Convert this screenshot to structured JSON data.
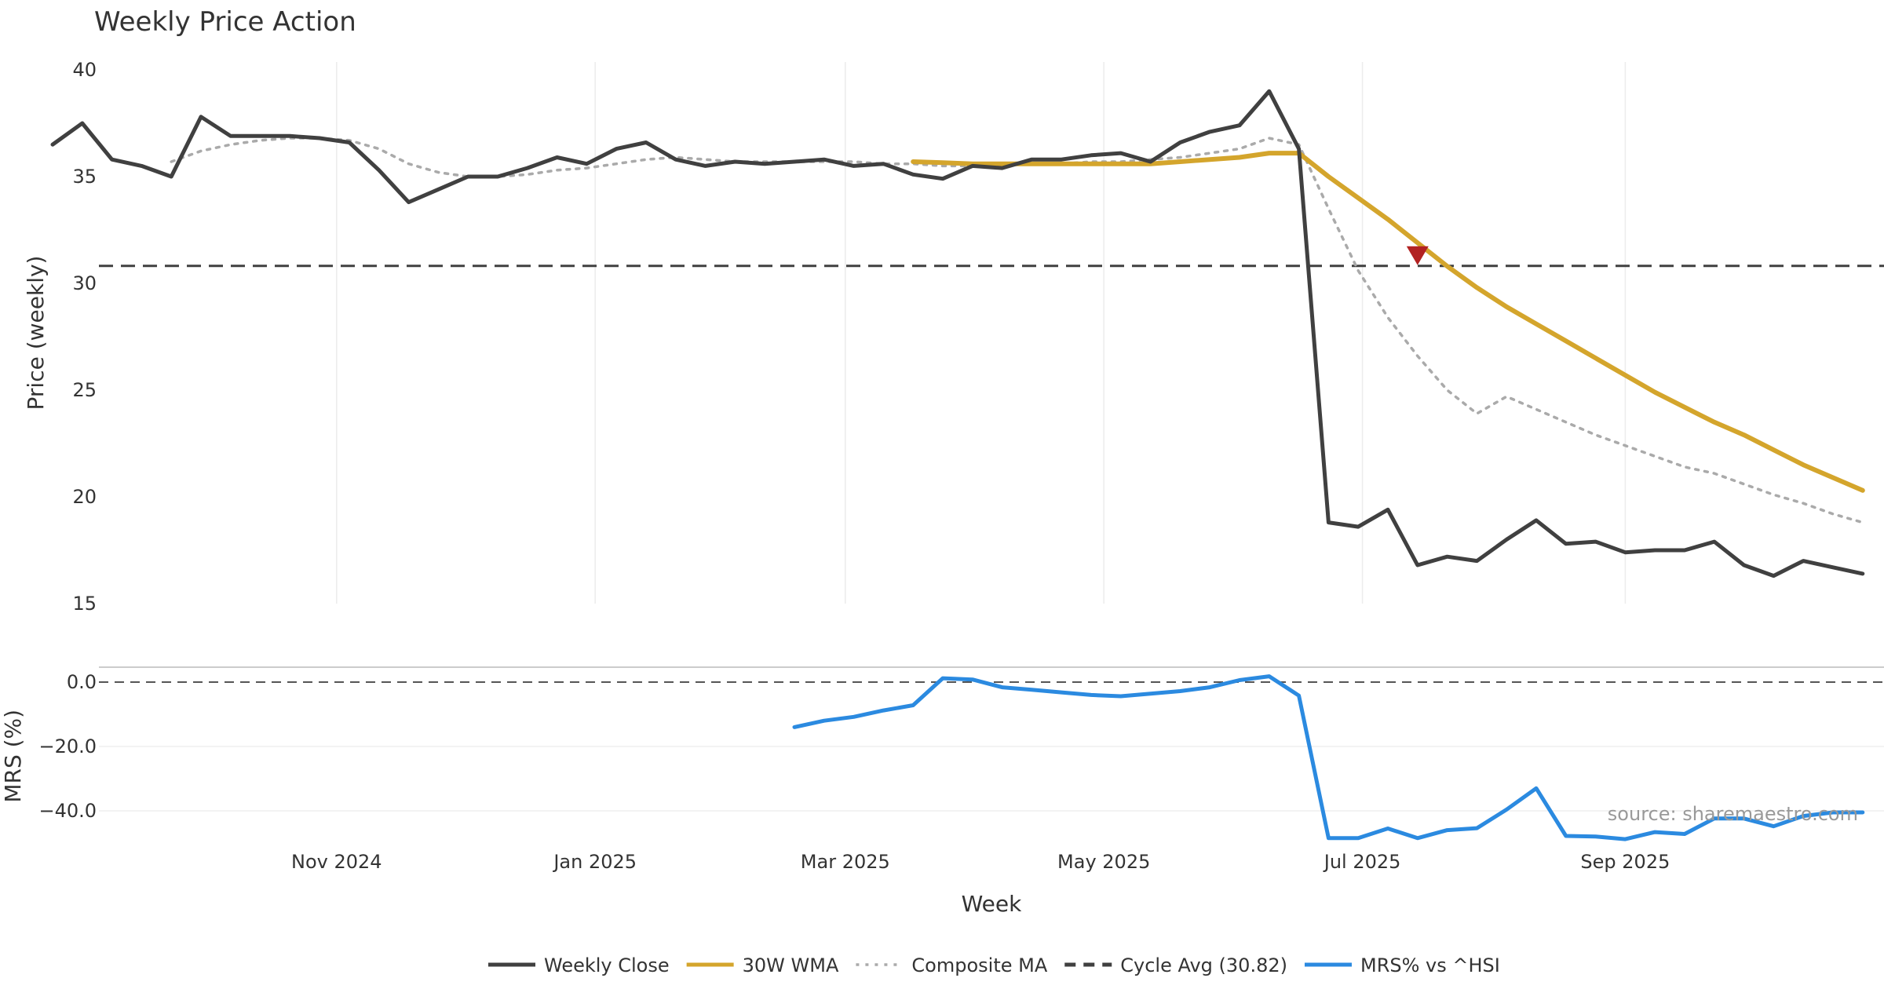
{
  "chart_data": {
    "type": "line",
    "title": "Weekly Price Action",
    "xlabel": "Week",
    "source": "source: sharemaestro.com",
    "x_ticks": [
      "Nov 2024",
      "Jan 2025",
      "Mar 2025",
      "May 2025",
      "Jul 2025",
      "Sep 2025"
    ],
    "weeks": [
      "2024-08-26",
      "2024-09-02",
      "2024-09-09",
      "2024-09-16",
      "2024-09-23",
      "2024-09-30",
      "2024-10-07",
      "2024-10-14",
      "2024-10-21",
      "2024-10-28",
      "2024-11-04",
      "2024-11-11",
      "2024-11-18",
      "2024-11-25",
      "2024-12-02",
      "2024-12-09",
      "2024-12-16",
      "2024-12-23",
      "2024-12-30",
      "2025-01-06",
      "2025-01-13",
      "2025-01-20",
      "2025-01-27",
      "2025-02-03",
      "2025-02-10",
      "2025-02-17",
      "2025-02-24",
      "2025-03-03",
      "2025-03-10",
      "2025-03-17",
      "2025-03-24",
      "2025-03-31",
      "2025-04-07",
      "2025-04-14",
      "2025-04-21",
      "2025-04-28",
      "2025-05-05",
      "2025-05-12",
      "2025-05-19",
      "2025-05-26",
      "2025-06-02",
      "2025-06-09",
      "2025-06-16",
      "2025-06-23",
      "2025-06-30",
      "2025-07-07",
      "2025-07-14",
      "2025-07-21",
      "2025-07-28",
      "2025-08-04",
      "2025-08-11",
      "2025-08-18",
      "2025-08-25",
      "2025-09-01",
      "2025-09-08",
      "2025-09-15",
      "2025-09-22",
      "2025-09-29",
      "2025-10-06",
      "2025-10-13",
      "2025-10-20",
      "2025-10-27"
    ],
    "price_panel": {
      "ylabel": "Price (weekly)",
      "ylim": [
        15,
        40
      ],
      "yticks": [
        "15",
        "20",
        "25",
        "30",
        "35",
        "40"
      ],
      "series": [
        {
          "name": "Weekly Close",
          "color": "#404040",
          "style": "solid",
          "values": [
            36.5,
            37.5,
            35.8,
            35.5,
            35.0,
            37.8,
            36.9,
            36.9,
            36.9,
            36.8,
            36.6,
            35.3,
            33.8,
            34.4,
            35.0,
            35.0,
            35.4,
            35.9,
            35.6,
            36.3,
            36.6,
            35.8,
            35.5,
            35.7,
            35.6,
            35.7,
            35.8,
            35.5,
            35.6,
            35.1,
            34.9,
            35.5,
            35.4,
            35.8,
            35.8,
            36.0,
            36.1,
            35.7,
            36.6,
            37.1,
            37.4,
            39.0,
            36.3,
            18.8,
            18.6,
            19.4,
            16.8,
            17.2,
            17.0,
            18.0,
            18.9,
            17.8,
            17.9,
            17.4,
            17.5,
            17.5,
            17.9,
            16.8,
            16.3,
            17.0,
            16.7,
            16.4
          ]
        },
        {
          "name": "30W WMA",
          "color": "#d4a52c",
          "style": "solid",
          "values": [
            null,
            null,
            null,
            null,
            null,
            null,
            null,
            null,
            null,
            null,
            null,
            null,
            null,
            null,
            null,
            null,
            null,
            null,
            null,
            null,
            null,
            null,
            null,
            null,
            null,
            null,
            null,
            null,
            null,
            35.7,
            35.65,
            35.6,
            35.6,
            35.6,
            35.6,
            35.6,
            35.6,
            35.6,
            35.7,
            35.8,
            35.9,
            36.1,
            36.1,
            35.0,
            34.0,
            33.0,
            31.9,
            30.8,
            29.8,
            28.9,
            28.1,
            27.3,
            26.5,
            25.7,
            24.9,
            24.2,
            23.5,
            22.9,
            22.2,
            21.5,
            20.9,
            20.3
          ]
        },
        {
          "name": "Composite MA",
          "color": "#aaaaaa",
          "style": "dotted",
          "values": [
            null,
            null,
            null,
            null,
            35.7,
            36.2,
            36.5,
            36.7,
            36.8,
            36.8,
            36.7,
            36.3,
            35.6,
            35.2,
            35.0,
            35.0,
            35.1,
            35.3,
            35.4,
            35.6,
            35.8,
            35.9,
            35.8,
            35.7,
            35.7,
            35.7,
            35.7,
            35.7,
            35.6,
            35.6,
            35.5,
            35.5,
            35.6,
            35.6,
            35.6,
            35.7,
            35.7,
            35.8,
            35.9,
            36.1,
            36.3,
            36.8,
            36.5,
            33.5,
            30.6,
            28.4,
            26.6,
            25.0,
            23.9,
            24.7,
            24.1,
            23.5,
            22.9,
            22.4,
            21.9,
            21.4,
            21.1,
            20.6,
            20.1,
            19.7,
            19.2,
            18.8
          ]
        },
        {
          "name": "Cycle Avg (30.82)",
          "color": "#404040",
          "style": "dashed",
          "constant": 30.82
        }
      ],
      "marker": {
        "week": "2025-07-14",
        "value": 31.0,
        "shape": "down-triangle",
        "color": "#b22222"
      }
    },
    "mrs_panel": {
      "ylabel": "MRS (%)",
      "ylim": [
        -51,
        4
      ],
      "yticks": [
        "0.0",
        "−20.0",
        "−40.0"
      ],
      "zero_line": 0,
      "series": [
        {
          "name": "MRS% vs ^HSI",
          "color": "#2b8ae0",
          "style": "solid",
          "values": [
            null,
            null,
            null,
            null,
            null,
            null,
            null,
            null,
            null,
            null,
            null,
            null,
            null,
            null,
            null,
            null,
            null,
            null,
            null,
            null,
            null,
            null,
            null,
            null,
            null,
            -14.0,
            -12.0,
            -10.8,
            -8.8,
            -7.2,
            1.2,
            0.8,
            -1.6,
            -2.4,
            -3.2,
            -4.0,
            -4.4,
            -3.6,
            -2.8,
            -1.6,
            0.6,
            1.8,
            -4.2,
            -48.5,
            -48.5,
            -45.5,
            -48.5,
            -46.0,
            -45.4,
            -39.6,
            -33.0,
            -47.8,
            -48.0,
            -48.8,
            -46.6,
            -47.2,
            -42.4,
            -42.4,
            -44.8,
            -41.6,
            -40.5,
            -40.5
          ]
        }
      ]
    },
    "legend": {
      "placement": "bottom-center",
      "entries": [
        "Weekly Close",
        "30W WMA",
        "Composite MA",
        "Cycle Avg (30.82)",
        "MRS% vs ^HSI"
      ]
    }
  }
}
